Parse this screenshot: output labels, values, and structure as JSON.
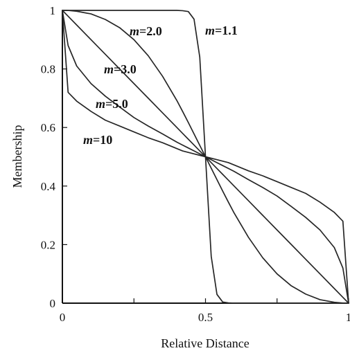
{
  "chart_data": {
    "type": "line",
    "title": "",
    "xlabel": "Relative Distance",
    "ylabel": "Membership",
    "xlim": [
      0,
      1
    ],
    "ylim": [
      0,
      1
    ],
    "x_ticks": [
      0,
      0.25,
      0.5,
      0.75,
      1
    ],
    "x_tick_labels": [
      "0",
      "",
      "0.5",
      "",
      "1"
    ],
    "y_ticks": [
      0,
      0.2,
      0.4,
      0.6,
      0.8,
      1
    ],
    "y_tick_labels": [
      "0",
      "0.2",
      "0.4",
      "0.6",
      "0.8",
      "1"
    ],
    "grid": false,
    "legend": "inline labels",
    "x": [
      0,
      0.02,
      0.05,
      0.1,
      0.15,
      0.2,
      0.25,
      0.3,
      0.35,
      0.4,
      0.42,
      0.44,
      0.46,
      0.48,
      0.5,
      0.52,
      0.54,
      0.56,
      0.58,
      0.6,
      0.65,
      0.7,
      0.75,
      0.8,
      0.85,
      0.9,
      0.95,
      0.98,
      1
    ],
    "series": [
      {
        "name": "m=1.1",
        "label_prefix": "m",
        "label_suffix": "=1.1",
        "values": [
          1,
          1,
          1,
          1,
          1,
          1,
          1,
          1,
          1,
          1,
          0.999,
          0.996,
          0.97,
          0.84,
          0.5,
          0.16,
          0.03,
          0.004,
          0.001,
          0,
          0,
          0,
          0,
          0,
          0,
          0,
          0,
          0,
          0
        ]
      },
      {
        "name": "m=2.0",
        "label_prefix": "m",
        "label_suffix": "=2.0",
        "values": [
          1,
          0.9998,
          0.997,
          0.988,
          0.969,
          0.941,
          0.9,
          0.845,
          0.775,
          0.692,
          0.655,
          0.617,
          0.578,
          0.539,
          0.5,
          0.461,
          0.422,
          0.383,
          0.345,
          0.308,
          0.225,
          0.155,
          0.1,
          0.059,
          0.031,
          0.012,
          0.003,
          0.0004,
          0
        ]
      },
      {
        "name": "m=3.0",
        "label_prefix": "m",
        "label_suffix": "=3.0",
        "values": [
          1,
          0.98,
          0.95,
          0.9,
          0.85,
          0.8,
          0.75,
          0.7,
          0.65,
          0.6,
          0.58,
          0.56,
          0.54,
          0.52,
          0.5,
          0.48,
          0.46,
          0.44,
          0.42,
          0.4,
          0.35,
          0.3,
          0.25,
          0.2,
          0.15,
          0.1,
          0.05,
          0.02,
          0
        ]
      },
      {
        "name": "m=5.0",
        "label_prefix": "m",
        "label_suffix": "=5.0",
        "values": [
          1,
          0.88,
          0.81,
          0.75,
          0.707,
          0.67,
          0.634,
          0.605,
          0.578,
          0.55,
          0.54,
          0.53,
          0.52,
          0.51,
          0.5,
          0.49,
          0.48,
          0.47,
          0.46,
          0.45,
          0.422,
          0.395,
          0.366,
          0.33,
          0.293,
          0.25,
          0.19,
          0.12,
          0
        ]
      },
      {
        "name": "m=10",
        "label_prefix": "m",
        "label_suffix": "=10",
        "values": [
          1,
          0.72,
          0.69,
          0.655,
          0.625,
          0.605,
          0.585,
          0.565,
          0.548,
          0.528,
          0.52,
          0.515,
          0.51,
          0.505,
          0.5,
          0.495,
          0.49,
          0.485,
          0.48,
          0.472,
          0.452,
          0.435,
          0.415,
          0.395,
          0.375,
          0.345,
          0.31,
          0.28,
          0
        ]
      }
    ]
  }
}
